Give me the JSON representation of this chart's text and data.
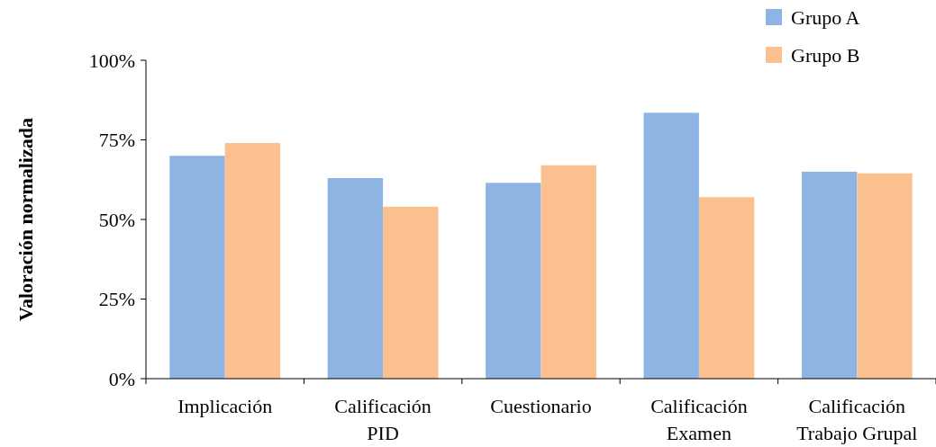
{
  "chart_data": {
    "type": "bar",
    "ylabel": "Valoración normalizada",
    "categories": [
      "Implicación",
      "Calificación PID",
      "Cuestionario",
      "Calificación Examen",
      "Calificación Trabajo Grupal"
    ],
    "series": [
      {
        "name": "Grupo A",
        "color": "#8eb4e3",
        "values": [
          70,
          63,
          61.5,
          83.5,
          65
        ]
      },
      {
        "name": "Grupo B",
        "color": "#fac090",
        "values": [
          74,
          54,
          67,
          57,
          64.5
        ]
      }
    ],
    "ylim": [
      0,
      100
    ],
    "yticks": [
      {
        "value": 0,
        "label": "0%"
      },
      {
        "value": 25,
        "label": "25%"
      },
      {
        "value": 50,
        "label": "50%"
      },
      {
        "value": 75,
        "label": "75%"
      },
      {
        "value": 100,
        "label": "100%"
      }
    ],
    "grid": false,
    "legend": "top right"
  }
}
